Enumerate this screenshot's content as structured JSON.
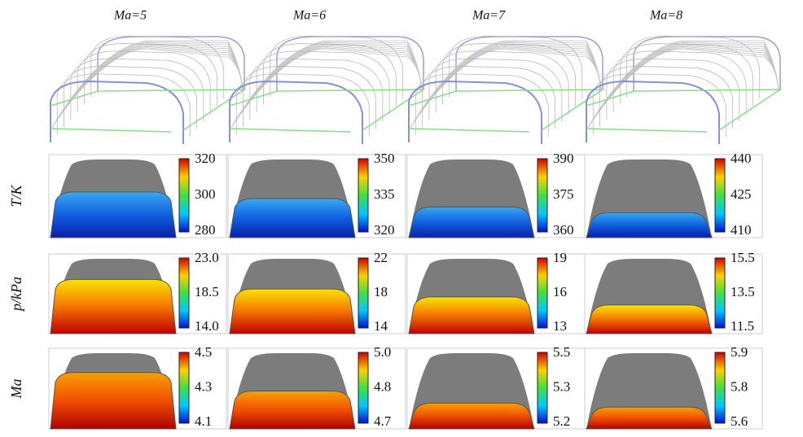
{
  "columns": [
    "Ma=5",
    "Ma=6",
    "Ma=7",
    "Ma=8"
  ],
  "rows": [
    {
      "label": "T/K",
      "cells": [
        [
          "320",
          "300",
          "280"
        ],
        [
          "350",
          "335",
          "320"
        ],
        [
          "390",
          "375",
          "360"
        ],
        [
          "440",
          "425",
          "410"
        ]
      ]
    },
    {
      "label": "p/kPa",
      "cells": [
        [
          "23.0",
          "18.5",
          "14.0"
        ],
        [
          "22",
          "18",
          "14"
        ],
        [
          "19",
          "16",
          "13"
        ],
        [
          "15.5",
          "13.5",
          "11.5"
        ]
      ]
    },
    {
      "label": "Ma",
      "cells": [
        [
          "4.5",
          "4.3",
          "4.1"
        ],
        [
          "5.0",
          "4.8",
          "4.7"
        ],
        [
          "5.5",
          "5.3",
          "5.2"
        ],
        [
          "5.9",
          "5.8",
          "5.6"
        ]
      ]
    }
  ]
}
